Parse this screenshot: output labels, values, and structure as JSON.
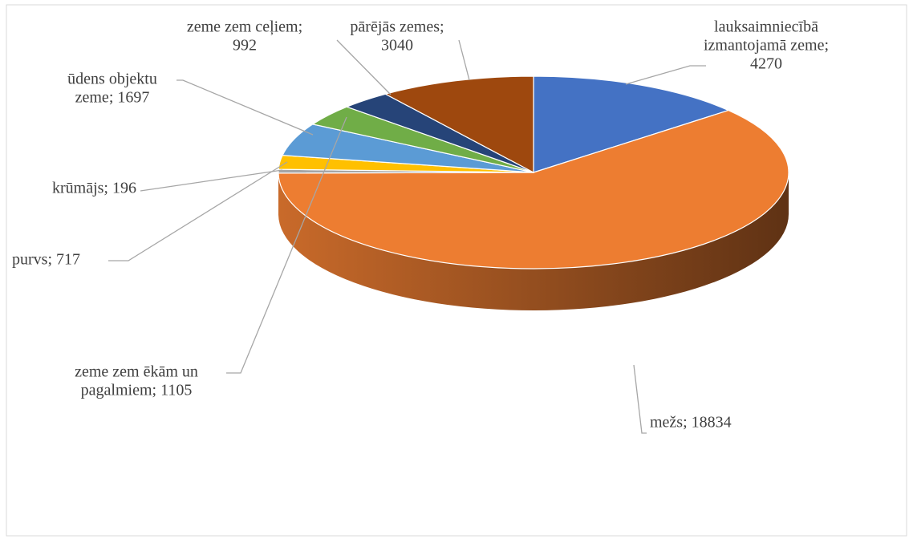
{
  "chart_data": {
    "type": "pie3d",
    "values": [
      4270,
      18834,
      196,
      717,
      1697,
      1105,
      992,
      3040
    ],
    "value_labels": [
      [
        "lauksaimniecībā",
        "izmantojamā zeme;",
        "4270"
      ],
      [
        "mežs; 18834"
      ],
      [
        "krūmājs; 196"
      ],
      [
        "purvs; 717"
      ],
      [
        "ūdens objektu",
        "zeme; 1697"
      ],
      [
        "zeme zem ēkām un",
        "pagalmiem; 1105"
      ],
      [
        "zeme zem ceļiem;",
        "992"
      ],
      [
        "pārējās zemes;",
        "3040"
      ]
    ],
    "colors": [
      "#4472c4",
      "#ed7d31",
      "#a5a5a5",
      "#ffc000",
      "#5b9bd5",
      "#70ad47",
      "#264478",
      "#9e480e"
    ]
  }
}
